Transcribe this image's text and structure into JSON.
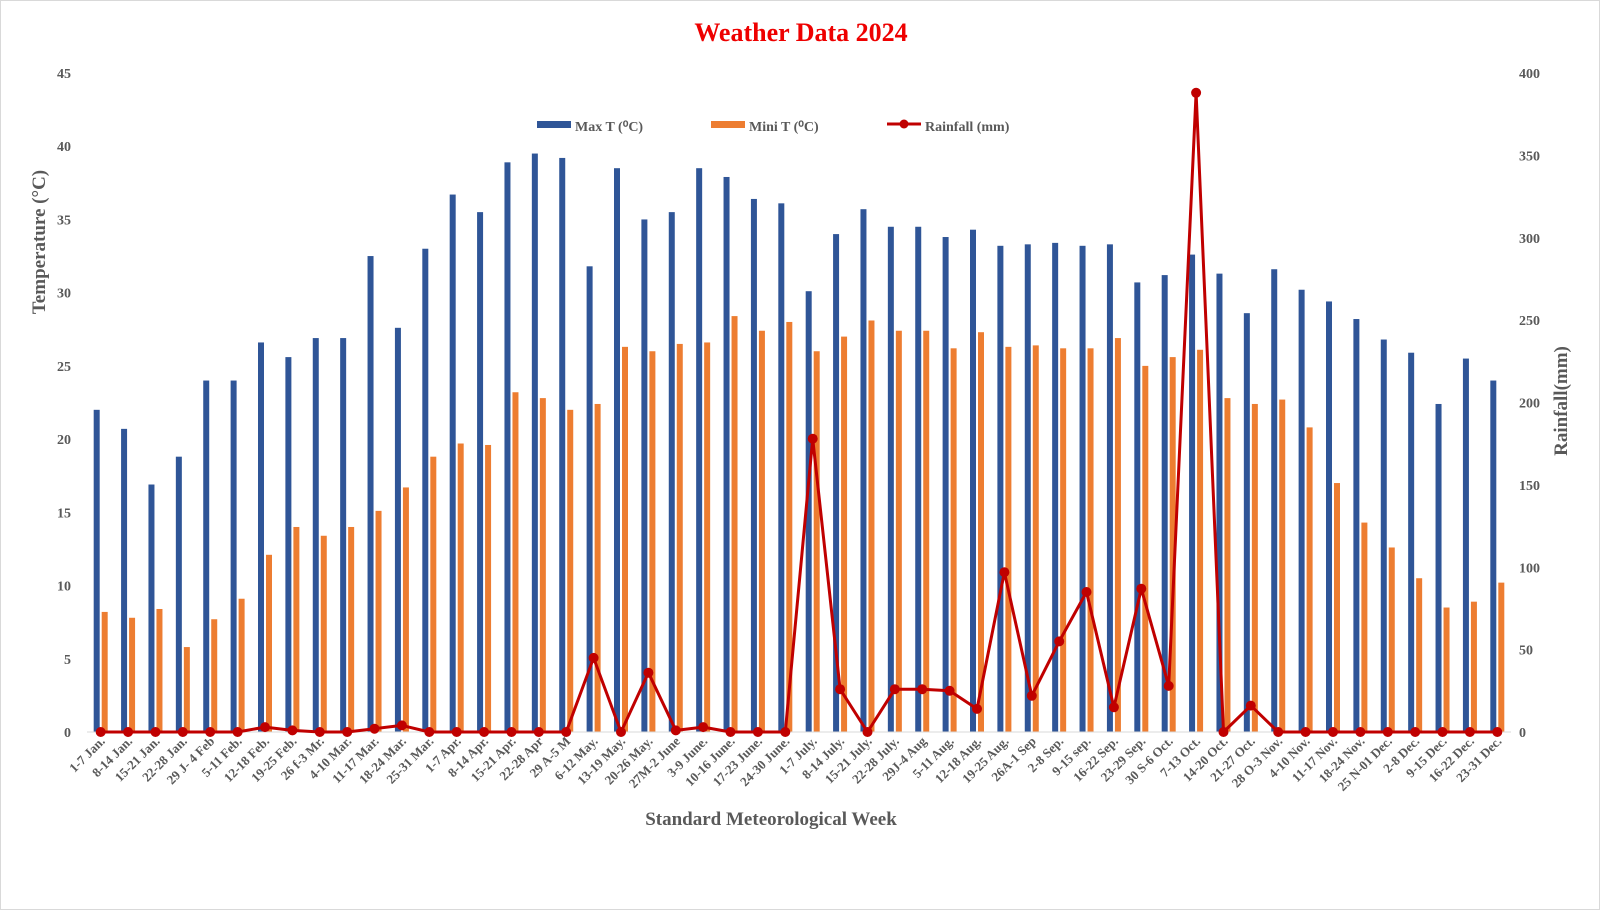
{
  "chart_data": {
    "type": "bar",
    "title": "Weather Data 2024",
    "xlabel": "Standard Meteorological Week",
    "ylabel": "Temperature (°C)",
    "y2label": "Rainfall(mm)",
    "ylim": [
      0,
      45
    ],
    "y2lim": [
      0,
      400
    ],
    "yticks": [
      "0",
      "5",
      "10",
      "15",
      "20",
      "25",
      "30",
      "35",
      "40",
      "45"
    ],
    "y2ticks": [
      "0",
      "50",
      "100",
      "150",
      "200",
      "250",
      "300",
      "350",
      "400"
    ],
    "legend_position": "top-center",
    "categories": [
      "1-7 Jan.",
      "8-14 Jan.",
      "15-21 Jan.",
      "22-28 Jan.",
      "29 J- 4 Feb",
      "5-11 Feb.",
      "12-18 Feb.",
      "19-25 Feb.",
      "26 f-3 Mr.",
      "4-10 Mar.",
      "11-17 Mar.",
      "18-24 Mar.",
      "25-31 Mar.",
      "1-7 Apr.",
      "8-14 Apr.",
      "15-21 Apr.",
      "22-28 Apr",
      "29 A-5 M",
      "6-12 May.",
      "13-19 May.",
      "20-26 May.",
      "27M-2 June",
      "3-9 June.",
      "10-16 June.",
      "17-23 June.",
      "24-30 June.",
      "1-7 July.",
      "8-14 July.",
      "15-21 July.",
      "22-28 July.",
      "29J-4 Aug",
      "5-11 Aug.",
      "12-18 Aug.",
      "19-25 Aug.",
      "26A-1 Sep",
      "2-8 Sep.",
      "9-15 sep.",
      "16-22 Sep.",
      "23-29 Sep.",
      "30 S-6 Oct.",
      "7-13 Oct.",
      "14-20 Oct.",
      "21-27 Oct.",
      "28 O-3 Nov.",
      "4-10 Nov.",
      "11-17 Nov.",
      "18-24 Nov.",
      "25 N-01 Dec.",
      "2-8 Dec.",
      "9-15 Dec.",
      "16-22 Dec.",
      "23-31 Dec."
    ],
    "series": [
      {
        "name": "Max T (⁰C)",
        "type": "bar",
        "axis": "left",
        "color": "#2f5597",
        "values": [
          22.0,
          20.7,
          16.9,
          18.8,
          24.0,
          24.0,
          26.6,
          25.6,
          26.9,
          26.9,
          32.5,
          27.6,
          33.0,
          36.7,
          35.5,
          38.9,
          39.5,
          39.2,
          31.8,
          38.5,
          35.0,
          35.5,
          38.5,
          37.9,
          36.4,
          36.1,
          30.1,
          34.0,
          35.7,
          34.5,
          34.5,
          33.8,
          34.3,
          33.2,
          33.3,
          33.4,
          33.2,
          33.3,
          30.7,
          31.2,
          32.6,
          31.3,
          28.6,
          31.6,
          30.2,
          29.4,
          28.2,
          26.8,
          25.9,
          22.4,
          25.5,
          24.0
        ]
      },
      {
        "name": "Mini T (⁰C)",
        "type": "bar",
        "axis": "left",
        "color": "#ed7d31",
        "values": [
          8.2,
          7.8,
          8.4,
          5.8,
          7.7,
          9.1,
          12.1,
          14.0,
          13.4,
          14.0,
          15.1,
          16.7,
          18.8,
          19.7,
          19.6,
          23.2,
          22.8,
          22.0,
          22.4,
          26.3,
          26.0,
          26.5,
          26.6,
          28.4,
          27.4,
          28.0,
          26.0,
          27.0,
          28.1,
          27.4,
          27.4,
          26.2,
          27.3,
          26.3,
          26.4,
          26.2,
          26.2,
          26.9,
          25.0,
          25.6,
          26.1,
          22.8,
          22.4,
          22.7,
          20.8,
          17.0,
          14.3,
          12.6,
          10.5,
          8.5,
          8.9,
          10.2
        ]
      },
      {
        "name": "Rainfall (mm)",
        "type": "line",
        "axis": "right",
        "color": "#c00000",
        "values": [
          0,
          0,
          0,
          0,
          0,
          0,
          3,
          1,
          0,
          0,
          2,
          4,
          0,
          0,
          0,
          0,
          0,
          0,
          45,
          0,
          36,
          1,
          3,
          0,
          0,
          0,
          178,
          26,
          0,
          26,
          26,
          25,
          14,
          97,
          22,
          55,
          85,
          15,
          87,
          28,
          388,
          0,
          16,
          0,
          0,
          0,
          0,
          0,
          0,
          0,
          0,
          0
        ]
      }
    ]
  }
}
